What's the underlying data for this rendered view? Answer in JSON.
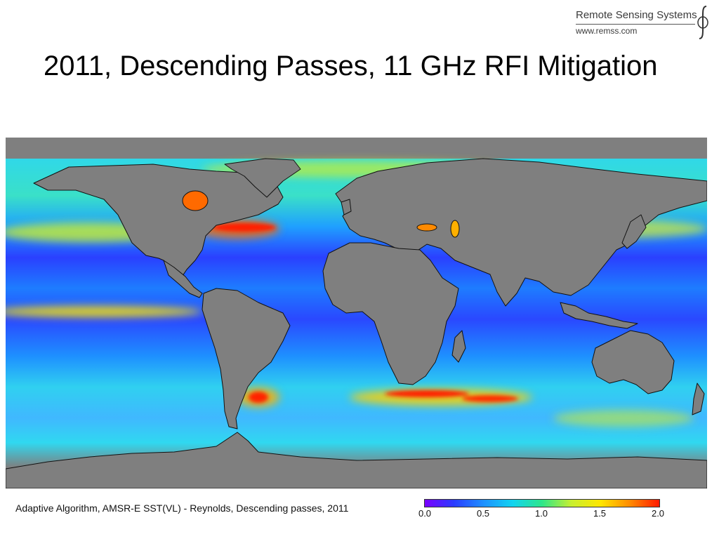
{
  "logo": {
    "org": "Remote Sensing Systems",
    "url": "www.remss.com"
  },
  "title": "2011, Descending Passes, 11 GHz RFI Mitigation",
  "caption": "Adaptive Algorithm, AMSR-E SST(VL) - Reynolds, Descending passes, 2011",
  "colorbar": {
    "min": 0.0,
    "max": 2.0,
    "ticks": [
      "0.0",
      "0.5",
      "1.0",
      "1.5",
      "2.0"
    ],
    "colors": [
      "#7a00ff",
      "#2a3cff",
      "#1e90ff",
      "#12d4f0",
      "#2ee68a",
      "#c8ef30",
      "#ffe600",
      "#ff8a00",
      "#ff1a00"
    ]
  },
  "map": {
    "land_color": "#7f7f7f",
    "coastline_color": "#111111",
    "high_anomaly_color": "#ff1a00"
  }
}
